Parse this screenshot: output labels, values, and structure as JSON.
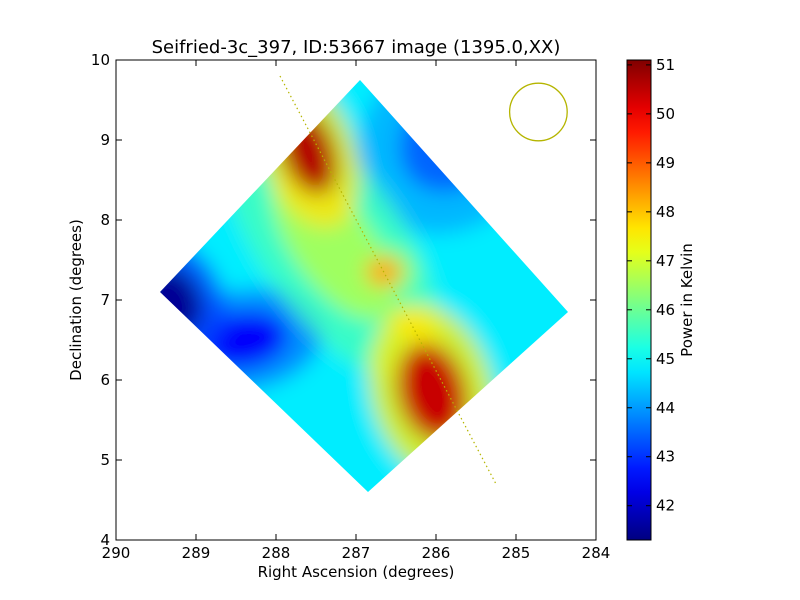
{
  "chart_data": {
    "type": "heatmap",
    "title": "Seifried-3c_397, ID:53667 image (1395.0,XX)",
    "xlabel": "Right Ascension (degrees)",
    "ylabel": "Declination (degrees)",
    "xlim": [
      290,
      284
    ],
    "ylim": [
      4,
      10
    ],
    "x_ticks": [
      "290",
      "289",
      "288",
      "287",
      "286",
      "285",
      "284"
    ],
    "x_tick_values": [
      290,
      289,
      288,
      287,
      286,
      285,
      284
    ],
    "y_ticks": [
      "4",
      "5",
      "6",
      "7",
      "8",
      "9",
      "10"
    ],
    "y_tick_values": [
      4,
      5,
      6,
      7,
      8,
      9,
      10
    ],
    "colorbar": {
      "label": "Power in Kelvin",
      "colormap": "jet",
      "range": [
        41.3,
        51.1
      ],
      "ticks": [
        "42",
        "43",
        "44",
        "45",
        "46",
        "47",
        "48",
        "49",
        "50",
        "51"
      ],
      "tick_values": [
        42,
        43,
        44,
        45,
        46,
        47,
        48,
        49,
        50,
        51
      ]
    },
    "grid": false,
    "map_footprint_corners": [
      [
        289.45,
        7.1
      ],
      [
        286.95,
        9.75
      ],
      [
        284.35,
        6.85
      ],
      [
        286.85,
        4.6
      ]
    ],
    "background_value": 44.8,
    "features": [
      {
        "type": "peak",
        "ra": 287.6,
        "dec": 8.85,
        "value": 50.6
      },
      {
        "type": "peak",
        "ra": 286.05,
        "dec": 5.85,
        "value": 50.4
      },
      {
        "type": "peak",
        "ra": 286.65,
        "dec": 7.35,
        "value": 48.3
      },
      {
        "type": "peak",
        "ra": 286.3,
        "dec": 6.7,
        "value": 48.0
      },
      {
        "type": "minimum",
        "ra": 289.3,
        "dec": 7.0,
        "value": 41.5
      },
      {
        "type": "minimum",
        "ra": 288.4,
        "dec": 6.5,
        "value": 42.5
      },
      {
        "type": "minimum",
        "ra": 285.8,
        "dec": 9.0,
        "value": 43.5
      },
      {
        "type": "ridge",
        "ra": 287.3,
        "dec": 7.7,
        "value": 46.5
      }
    ],
    "overlays": [
      {
        "type": "line",
        "style": "dotted",
        "color": "#b5b500",
        "points": [
          [
            287.95,
            9.8
          ],
          [
            285.25,
            4.7
          ]
        ]
      },
      {
        "type": "circle",
        "color": "#b5b500",
        "center": [
          284.72,
          9.35
        ],
        "radius_deg": 0.36
      }
    ]
  }
}
